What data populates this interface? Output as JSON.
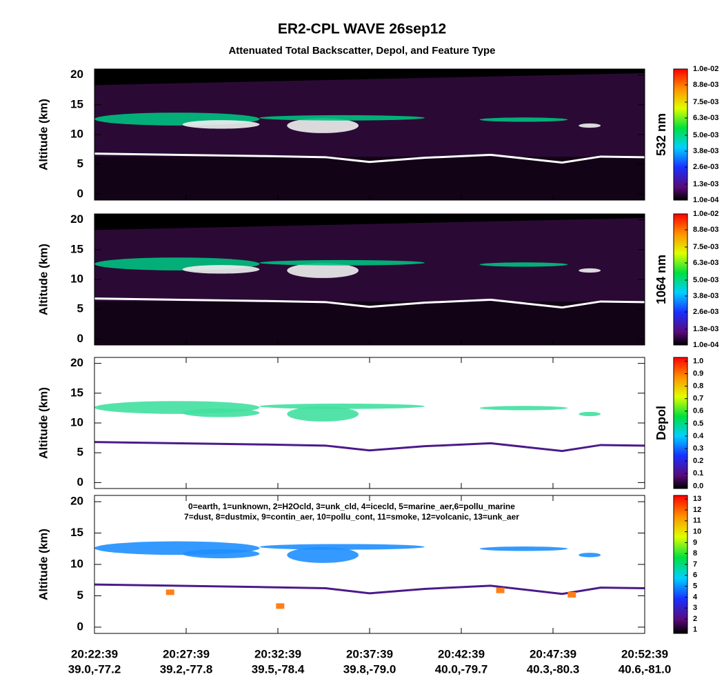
{
  "title": "ER2-CPL WAVE 26sep12",
  "subtitle": "Attenuated Total Backscatter, Depol, and Feature Type",
  "x_labels": {
    "time": [
      "20:22:39",
      "20:27:39",
      "20:32:39",
      "20:37:39",
      "20:42:39",
      "20:47:39",
      "20:52:39"
    ],
    "latlon": [
      "39.0,-77.2",
      "39.2,-77.8",
      "39.5,-78.4",
      "39.8,-79.0",
      "40.0,-79.7",
      "40.3,-80.3",
      "40.6,-81.0"
    ]
  },
  "chart_data": [
    {
      "type": "heatmap",
      "ylabel": "Altitude (km)",
      "ylim": [
        -1,
        21
      ],
      "yticks": [
        0,
        5,
        10,
        15,
        20
      ],
      "colorbar_label": "532 nm",
      "clim": [
        0.0001,
        0.01
      ],
      "cticks": [
        {
          "value": 0.0001,
          "label": "1.0e-04"
        },
        {
          "value": 0.0013,
          "label": "1.3e-03"
        },
        {
          "value": 0.0026,
          "label": "2.6e-03"
        },
        {
          "value": 0.0038,
          "label": "3.8e-03"
        },
        {
          "value": 0.005,
          "label": "5.0e-03"
        },
        {
          "value": 0.0063,
          "label": "6.3e-03"
        },
        {
          "value": 0.0075,
          "label": "7.5e-03"
        },
        {
          "value": 0.0088,
          "label": "8.8e-03"
        },
        {
          "value": 0.01,
          "label": "1.0e-02"
        }
      ]
    },
    {
      "type": "heatmap",
      "ylabel": "Altitude (km)",
      "ylim": [
        -1,
        21
      ],
      "yticks": [
        0,
        5,
        10,
        15,
        20
      ],
      "colorbar_label": "1064 nm",
      "clim": [
        0.0001,
        0.01
      ],
      "cticks": [
        {
          "value": 0.0001,
          "label": "1.0e-04"
        },
        {
          "value": 0.0013,
          "label": "1.3e-03"
        },
        {
          "value": 0.0026,
          "label": "2.6e-03"
        },
        {
          "value": 0.0038,
          "label": "3.8e-03"
        },
        {
          "value": 0.005,
          "label": "5.0e-03"
        },
        {
          "value": 0.0063,
          "label": "6.3e-03"
        },
        {
          "value": 0.0075,
          "label": "7.5e-03"
        },
        {
          "value": 0.0088,
          "label": "8.8e-03"
        },
        {
          "value": 0.01,
          "label": "1.0e-02"
        }
      ]
    },
    {
      "type": "heatmap",
      "ylabel": "Altitude (km)",
      "ylim": [
        -1,
        21
      ],
      "yticks": [
        0,
        5,
        10,
        15,
        20
      ],
      "colorbar_label": "Depol",
      "clim": [
        -0.02,
        1.03
      ],
      "cticks": [
        {
          "value": 0,
          "label": "0.0"
        },
        0.1,
        0.2,
        0.3,
        0.4,
        0.5,
        0.6,
        0.7,
        0.8,
        0.9,
        {
          "value": 1,
          "label": "1.0"
        }
      ]
    },
    {
      "type": "heatmap",
      "ylabel": "Altitude (km)",
      "ylim": [
        -1,
        21
      ],
      "yticks": [
        0,
        5,
        10,
        15,
        20
      ],
      "clim": [
        0.67,
        13.33
      ],
      "cticks": [
        1,
        2,
        3,
        4,
        5,
        6,
        7,
        8,
        9,
        10,
        11,
        12,
        13
      ],
      "annotation": [
        "0=earth, 1=unknown, 2=H2Ocld, 3=unk_cld, 4=icecld, 5=marine_aer,6=pollu_marine",
        "7=dust, 8=dustmix, 9=contin_aer, 10=pollu_cont, 11=smoke, 12=volcanic, 13=unk_aer"
      ]
    }
  ]
}
